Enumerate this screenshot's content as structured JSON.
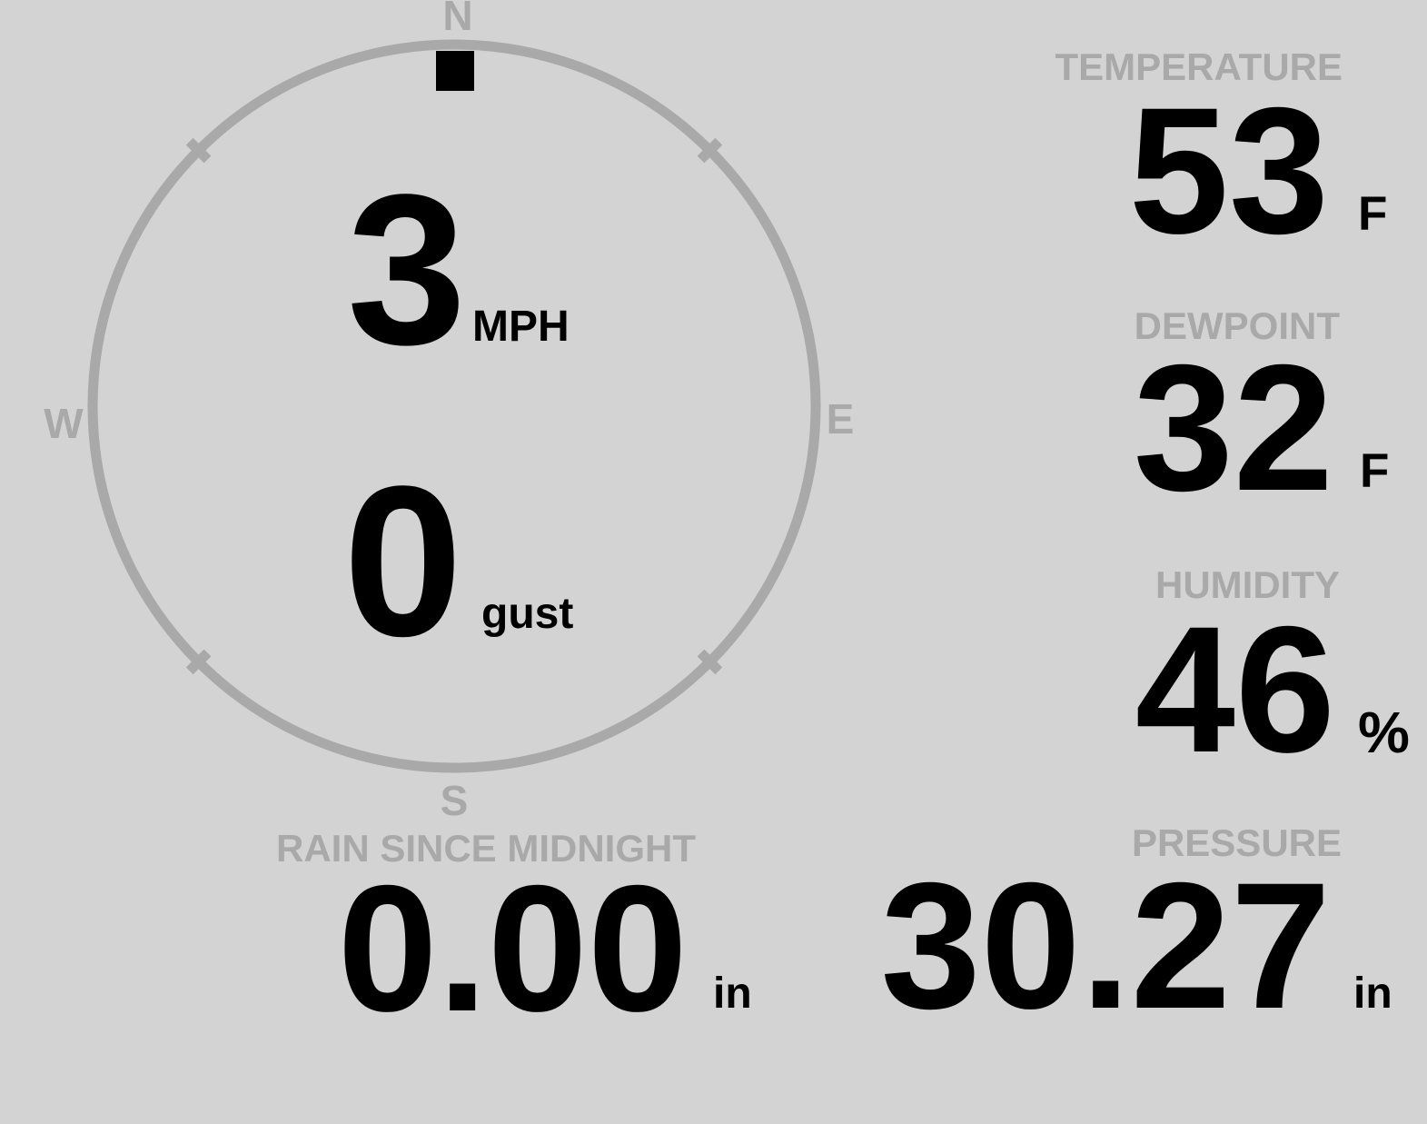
{
  "colors": {
    "background": "#d3d3d3",
    "muted_gray": "#a9a9a9",
    "value_black": "#000000"
  },
  "compass": {
    "cardinals": {
      "north": "N",
      "east": "E",
      "south": "S",
      "west": "W"
    },
    "wind": {
      "speed": "3",
      "speed_unit": "MPH",
      "gust": "0",
      "gust_unit": "gust",
      "direction": "N",
      "direction_deg": 0
    }
  },
  "metrics": {
    "temperature": {
      "label": "TEMPERATURE",
      "value": "53",
      "unit": "F"
    },
    "dewpoint": {
      "label": "DEWPOINT",
      "value": "32",
      "unit": "F"
    },
    "humidity": {
      "label": "HUMIDITY",
      "value": "46",
      "unit": "%"
    },
    "rain": {
      "label": "RAIN SINCE MIDNIGHT",
      "value": "0.00",
      "unit": "in"
    },
    "pressure": {
      "label": "PRESSURE",
      "value": "30.27",
      "unit": "in"
    }
  }
}
